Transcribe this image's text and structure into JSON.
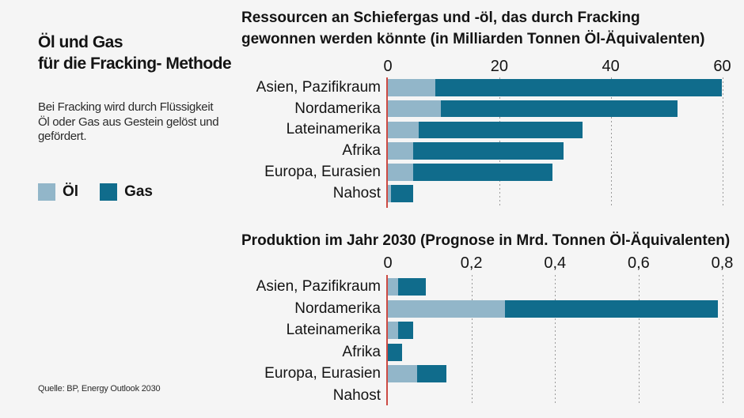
{
  "left": {
    "title": "Öl und Gas\nfür die Fracking- Methode",
    "description": "Bei Fracking wird durch Flüssigkeit\nÖl oder Gas aus Gestein gelöst und\ngefördert.",
    "source": "Quelle: BP, Energy Outlook 2030"
  },
  "legend": {
    "oil_label": "Öl",
    "gas_label": "Gas"
  },
  "colors": {
    "oil": "#92b6c9",
    "gas": "#106c8c",
    "axis_red": "#cc4b44",
    "grid": "#9a9a9a",
    "background": "#f5f5f5",
    "text": "#141414"
  },
  "chart_data": [
    {
      "type": "bar",
      "orientation": "horizontal",
      "stacked": true,
      "title_bold": "Ressourcen",
      "title_rest": " an Schiefergas und -öl, das durch Fracking\ngewonnen werden könnte (in Milliarden Tonnen Öl-Äquivalenten)",
      "categories": [
        "Asien, Pazifikraum",
        "Nordamerika",
        "Lateinamerika",
        "Afrika",
        "Europa, Eurasien",
        "Nahost"
      ],
      "series": [
        {
          "name": "Öl",
          "values": [
            8.5,
            9.5,
            5.5,
            4.5,
            4.5,
            0.5
          ]
        },
        {
          "name": "Gas",
          "values": [
            51.5,
            42.5,
            29.5,
            27,
            25,
            4
          ]
        }
      ],
      "xlim": [
        0,
        60
      ],
      "tick_values": [
        0,
        20,
        40,
        60
      ],
      "tick_labels": [
        "0",
        "20",
        "40",
        "60"
      ],
      "grid": "dashed-vertical",
      "legend_position": "left-panel"
    },
    {
      "type": "bar",
      "orientation": "horizontal",
      "stacked": true,
      "title_bold": "Produktion",
      "title_rest": " im Jahr 2030 (Prognose in Mrd. Tonnen Öl-Äquivalenten)",
      "categories": [
        "Asien, Pazifikraum",
        "Nordamerika",
        "Lateinamerika",
        "Afrika",
        "Europa, Eurasien",
        "Nahost"
      ],
      "series": [
        {
          "name": "Öl",
          "values": [
            0.025,
            0.28,
            0.025,
            0,
            0.07,
            0
          ]
        },
        {
          "name": "Gas",
          "values": [
            0.065,
            0.51,
            0.035,
            0.035,
            0.07,
            0
          ]
        }
      ],
      "xlim": [
        0,
        0.8
      ],
      "tick_values": [
        0,
        0.2,
        0.4,
        0.6,
        0.8
      ],
      "tick_labels": [
        "0",
        "0,2",
        "0,4",
        "0,6",
        "0,8"
      ],
      "grid": "dashed-vertical",
      "legend_position": "left-panel"
    }
  ]
}
